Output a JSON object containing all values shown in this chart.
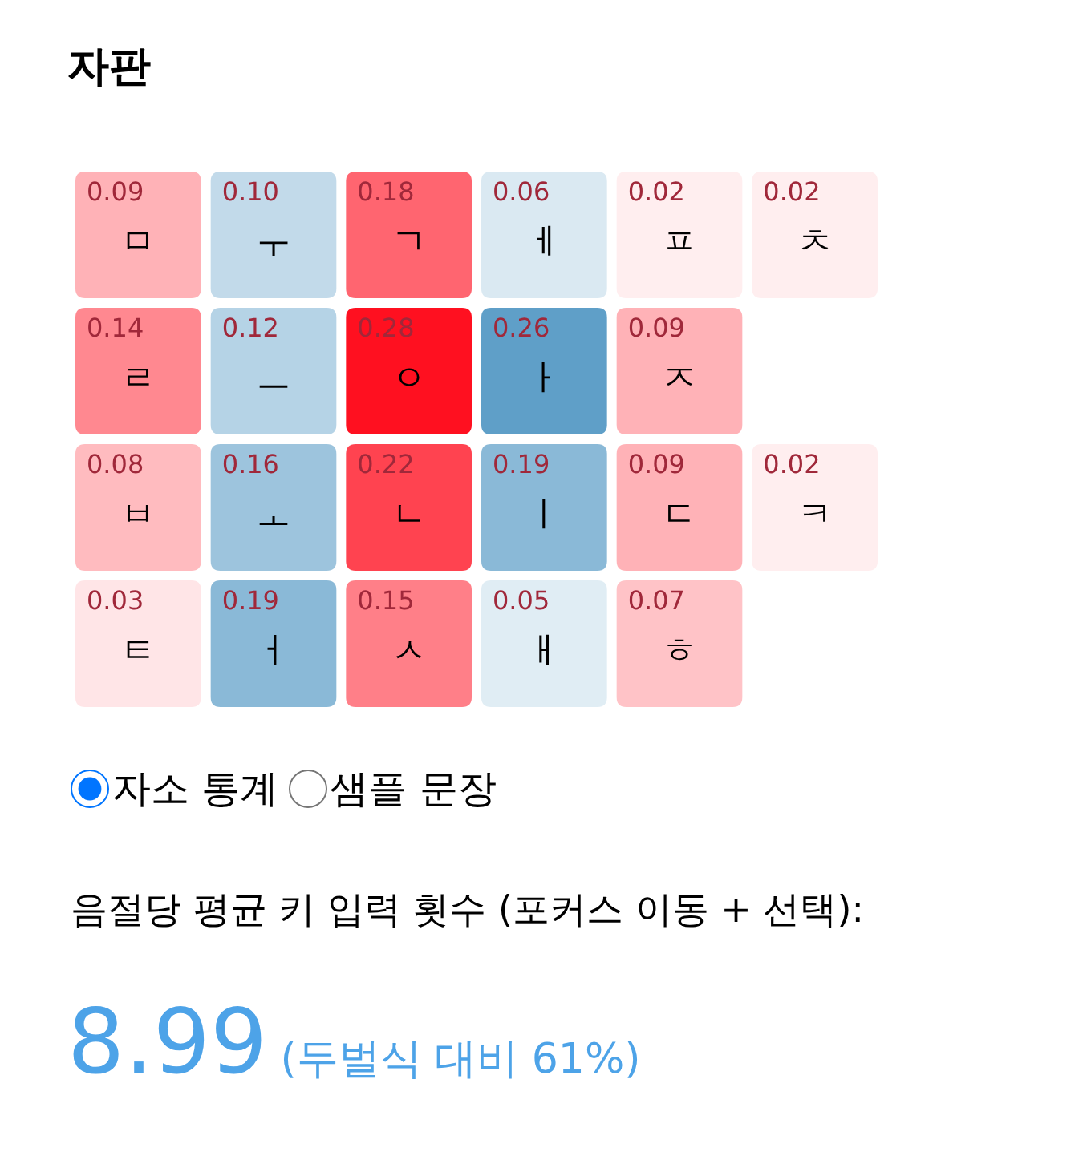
{
  "chart_data": {
    "type": "heatmap",
    "title": "자판",
    "categories": [
      null,
      null,
      null,
      null,
      null,
      null
    ],
    "y_categories": [
      null,
      null,
      null,
      null
    ],
    "cells": [
      [
        0.09,
        0.1,
        0.18,
        0.06,
        0.02,
        0.02
      ],
      [
        0.14,
        0.12,
        0.28,
        0.26,
        0.09,
        null
      ],
      [
        0.08,
        0.16,
        0.22,
        0.19,
        0.09,
        0.02
      ],
      [
        0.03,
        0.19,
        0.15,
        0.05,
        0.07,
        null
      ]
    ],
    "cell_labels": [
      [
        "0.09\nㅁ",
        "0.10\nㅜ",
        "0.18\nㄱ",
        "0.06\nㅔ",
        "0.02\nㅍ",
        "0.02\nㅊ"
      ],
      [
        "0.14\nㄹ",
        "0.12\nㅡ",
        "0.28\nㅇ",
        "0.26\nㅏ",
        "0.09\nㅈ",
        null
      ],
      [
        "0.08\nㅂ",
        "0.16\nㅗ",
        "0.22\nㄴ",
        "0.19\nㅣ",
        "0.09\nㄷ",
        "0.02\nㅋ"
      ],
      [
        "0.03\nㅌ",
        "0.19\nㅓ",
        "0.15\nㅅ",
        "0.05\nㅐ",
        "0.07\nㅎ",
        null
      ]
    ],
    "colors": [
      [
        "#ff1020",
        "#5398c4",
        "#ff1020",
        "#5398c4",
        "#ff1020",
        "#ff1020"
      ],
      [
        "#ff1020",
        "#5398c4",
        "#ff1020",
        "#5398c4",
        "#ff1020",
        null
      ],
      [
        "#ff1020",
        "#5398c4",
        "#ff1020",
        "#5398c4",
        "#ff1020",
        "#ff1020"
      ],
      [
        "#ff1020",
        "#5398c4",
        "#ff1020",
        "#5398c4",
        "#ff1020",
        null
      ]
    ],
    "data_labels": true,
    "annotations": [
      "자소 통계",
      "샘플 문장",
      "음절당 평균 키 입력 횟수 (포커스 이동 + 선택):",
      "8.99",
      "(두벌식 대비 61%)"
    ]
  }
}
